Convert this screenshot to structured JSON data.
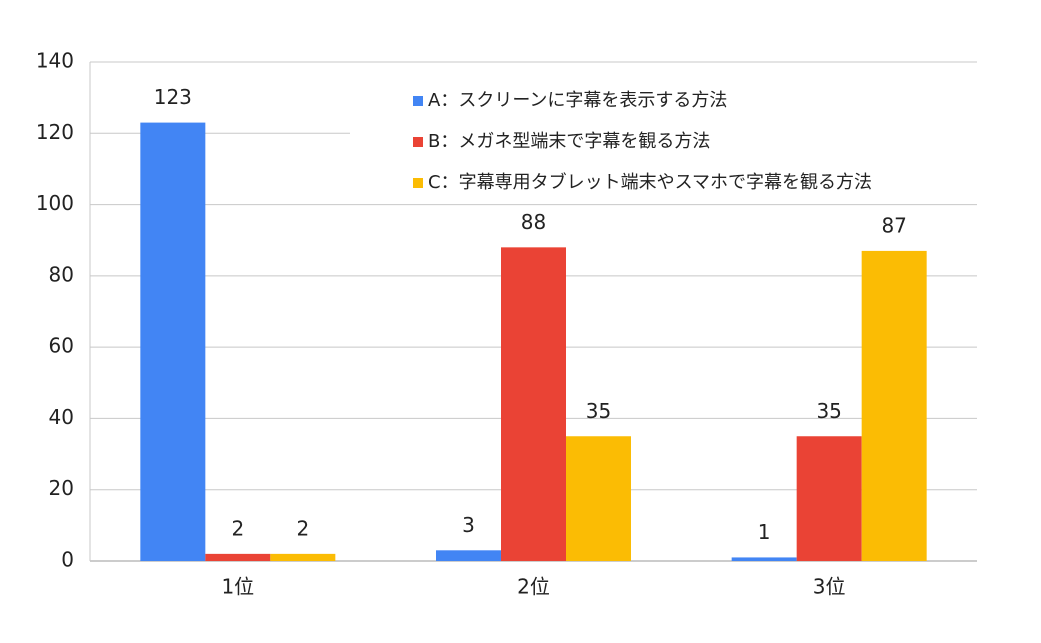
{
  "chart_data": {
    "type": "bar",
    "categories": [
      "1位",
      "2位",
      "3位"
    ],
    "series": [
      {
        "name": "A：スクリーンに字幕を表示する方法",
        "color": "#4285f4",
        "values": [
          123,
          3,
          1
        ]
      },
      {
        "name": "B：メガネ型端末で字幕を観る方法",
        "color": "#ea4335",
        "values": [
          2,
          88,
          35
        ]
      },
      {
        "name": "C：字幕専用タブレット端末やスマホで字幕を観る方法",
        "color": "#fbbc04",
        "values": [
          2,
          35,
          87
        ]
      }
    ],
    "ylim": [
      0,
      140
    ],
    "yticks": [
      0,
      20,
      40,
      60,
      80,
      100,
      120,
      140
    ],
    "grid": true,
    "legend": "top-right"
  }
}
